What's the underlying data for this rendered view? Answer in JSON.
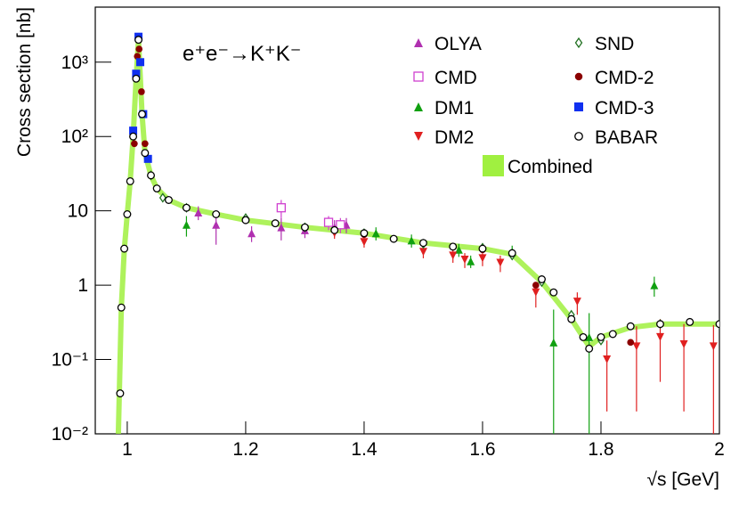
{
  "chart_data": {
    "type": "scatter",
    "title": "e⁺e⁻→K⁺K⁻",
    "x_label": "√s   [GeV]",
    "y_label": "Cross section   [nb]",
    "xlim": [
      0.946,
      2.0
    ],
    "ylim": [
      0.01,
      5500
    ],
    "y_log": true,
    "xticks": [
      1,
      1.2,
      1.4,
      1.6,
      1.8,
      2
    ],
    "yticks": [
      {
        "value": 0.01,
        "label": "10⁻²"
      },
      {
        "value": 0.1,
        "label": "10⁻¹"
      },
      1,
      10,
      {
        "value": 100,
        "label": "10²"
      },
      {
        "value": 1000,
        "label": "10³"
      }
    ],
    "legend": "upper right",
    "series": [
      {
        "name": "OLYA",
        "color": "#b030b0",
        "marker": "triangle-up",
        "x": [
          1.12,
          1.15,
          1.21,
          1.26,
          1.3,
          1.35,
          1.37
        ],
        "values": [
          9.5,
          6.5,
          5,
          6,
          5.5,
          6,
          6.5
        ],
        "errors": [
          2,
          3,
          1.2,
          2,
          1.2,
          1.5,
          1.5
        ]
      },
      {
        "name": "CMD",
        "color": "#d040d0",
        "marker": "square-open",
        "x": [
          1.26,
          1.34,
          1.36
        ],
        "values": [
          11,
          7,
          6.5
        ],
        "errors": [
          3,
          1.5,
          1.5
        ]
      },
      {
        "name": "DM1",
        "color": "#10a010",
        "marker": "triangle-up",
        "x": [
          1.1,
          1.42,
          1.48,
          1.56,
          1.58,
          1.65,
          1.72,
          1.78,
          1.89
        ],
        "values": [
          6.5,
          5,
          4,
          3,
          2.1,
          2.8,
          0.17,
          0.2,
          1.0
        ],
        "errors": [
          2,
          1,
          0.8,
          0.6,
          0.4,
          0.6,
          0.3,
          0.22,
          0.3
        ]
      },
      {
        "name": "DM2",
        "color": "#e02020",
        "marker": "triangle-down",
        "x": [
          1.35,
          1.4,
          1.5,
          1.55,
          1.57,
          1.6,
          1.63,
          1.69,
          1.76,
          1.81,
          1.86,
          1.9,
          1.94,
          1.99
        ],
        "values": [
          5,
          3.8,
          2.8,
          2.5,
          2.2,
          2.3,
          2.0,
          0.8,
          0.6,
          0.1,
          0.15,
          0.2,
          0.16,
          0.15
        ],
        "errors": [
          0.8,
          0.6,
          0.5,
          0.5,
          0.5,
          0.5,
          0.5,
          0.3,
          0.2,
          0.08,
          0.13,
          0.15,
          0.14,
          0.14
        ]
      },
      {
        "name": "SND",
        "color": "#207020",
        "marker": "diamond-open",
        "x": [
          1.04,
          1.06,
          1.1,
          1.2,
          1.3,
          1.4,
          1.5,
          1.6,
          1.65,
          1.7,
          1.75,
          1.8,
          1.9,
          2.0
        ],
        "values": [
          30,
          15,
          11,
          8,
          6,
          5,
          3.6,
          3.2,
          2.5,
          1.1,
          0.4,
          0.18,
          0.3,
          0.3
        ]
      },
      {
        "name": "CMD-2",
        "color": "#8b0000",
        "marker": "circle",
        "x": [
          1.012,
          1.017,
          1.02,
          1.024,
          1.03,
          1.3,
          1.4,
          1.6,
          1.69,
          1.85
        ],
        "values": [
          80,
          1200,
          1500,
          400,
          80,
          6,
          4.8,
          3.0,
          1.0,
          0.17
        ]
      },
      {
        "name": "CMD-3",
        "color": "#1030f0",
        "marker": "square",
        "x": [
          1.01,
          1.015,
          1.019,
          1.022,
          1.027,
          1.035
        ],
        "values": [
          120,
          700,
          2200,
          1000,
          200,
          50
        ]
      },
      {
        "name": "BABAR",
        "color": "#000000",
        "marker": "circle-open",
        "x": [
          0.988,
          0.99,
          0.995,
          1.0,
          1.005,
          1.01,
          1.015,
          1.019,
          1.025,
          1.03,
          1.04,
          1.05,
          1.07,
          1.1,
          1.15,
          1.2,
          1.25,
          1.3,
          1.35,
          1.4,
          1.45,
          1.5,
          1.55,
          1.6,
          1.65,
          1.7,
          1.72,
          1.75,
          1.77,
          1.78,
          1.8,
          1.82,
          1.85,
          1.9,
          1.95,
          2.0
        ],
        "values": [
          0.035,
          0.5,
          3.1,
          9,
          25,
          100,
          600,
          2000,
          200,
          60,
          30,
          20,
          14,
          11,
          9,
          7.5,
          6.8,
          6,
          5.5,
          5,
          4.2,
          3.7,
          3.3,
          3.1,
          2.7,
          1.2,
          0.8,
          0.35,
          0.2,
          0.14,
          0.2,
          0.22,
          0.28,
          0.3,
          0.32,
          0.3
        ]
      },
      {
        "name": "Combined",
        "color": "#a0f040",
        "marker": "band",
        "x": [
          0.985,
          0.99,
          0.995,
          1.0,
          1.005,
          1.01,
          1.015,
          1.019,
          1.025,
          1.03,
          1.04,
          1.05,
          1.07,
          1.1,
          1.15,
          1.2,
          1.3,
          1.4,
          1.5,
          1.6,
          1.65,
          1.7,
          1.75,
          1.78,
          1.8,
          1.85,
          1.9,
          2.0
        ],
        "values": [
          0.01,
          0.5,
          3,
          9,
          25,
          100,
          600,
          2000,
          200,
          60,
          30,
          20,
          14,
          11,
          9,
          7.5,
          6,
          5,
          3.7,
          3.1,
          2.6,
          1.1,
          0.35,
          0.15,
          0.2,
          0.27,
          0.3,
          0.3
        ]
      }
    ]
  }
}
